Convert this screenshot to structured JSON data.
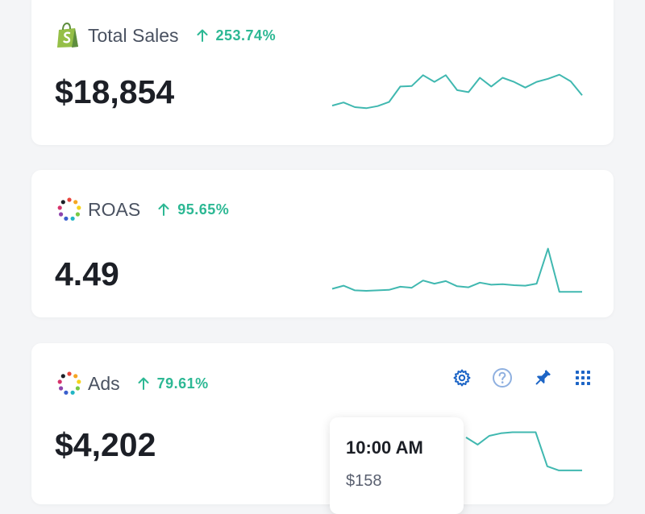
{
  "cards": [
    {
      "id": "sales",
      "name": "Total Sales",
      "icon": "shopify-bag-icon",
      "change": "253.74%",
      "change_direction": "up",
      "value": "$18,854",
      "spark": [
        0.28,
        0.34,
        0.25,
        0.23,
        0.27,
        0.35,
        0.65,
        0.66,
        0.87,
        0.74,
        0.87,
        0.58,
        0.54,
        0.82,
        0.65,
        0.82,
        0.74,
        0.63,
        0.74,
        0.8,
        0.88,
        0.75,
        0.48
      ]
    },
    {
      "id": "roas",
      "name": "ROAS",
      "icon": "multicolor-dots-icon",
      "change": "95.65%",
      "change_direction": "up",
      "value": "4.49",
      "spark": [
        0.18,
        0.24,
        0.15,
        0.14,
        0.15,
        0.16,
        0.22,
        0.2,
        0.34,
        0.28,
        0.33,
        0.23,
        0.21,
        0.3,
        0.26,
        0.27,
        0.25,
        0.24,
        0.28,
        0.96,
        0.12,
        0.12,
        0.12
      ]
    },
    {
      "id": "ads",
      "name": "Ads",
      "icon": "multicolor-dots-icon",
      "change": "79.61%",
      "change_direction": "up",
      "value": "$4,202",
      "spark": [
        0.72,
        0.58,
        0.75,
        0.8,
        0.82,
        0.82,
        0.82,
        0.16,
        0.08,
        0.08,
        0.08
      ],
      "tooltip": {
        "time": "10:00 AM",
        "value": "$158"
      },
      "tools": [
        "gear-icon",
        "help-icon",
        "pin-icon",
        "grid-icon"
      ]
    }
  ],
  "colors": {
    "trend_up": "#2db894",
    "spark_teal": "#40b8b0",
    "tool_blue": "#1d65c6",
    "shopify_green": "#95bf47"
  }
}
